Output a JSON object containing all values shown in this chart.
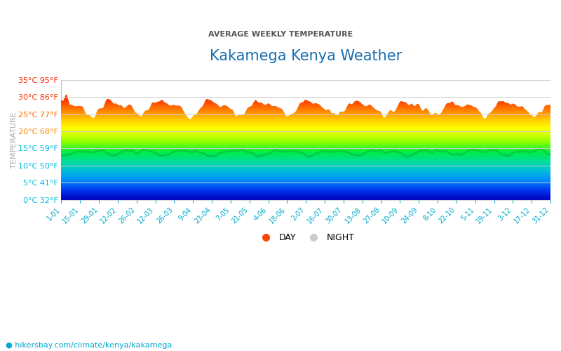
{
  "title": "Kakamega Kenya Weather",
  "subtitle": "AVERAGE WEEKLY TEMPERATURE",
  "ylabel": "TEMPERATURE",
  "url_text": "hikersbay.com/climate/kenya/kakamega",
  "yticks_c": [
    0,
    5,
    10,
    15,
    20,
    25,
    30,
    35
  ],
  "yticks_f": [
    32,
    41,
    50,
    59,
    68,
    77,
    86,
    95
  ],
  "ylim": [
    0,
    35
  ],
  "xlabels": [
    "1-01",
    "15-01",
    "29-01",
    "12-02",
    "26-02",
    "12-03",
    "26-03",
    "9-04",
    "23-04",
    "7-05",
    "21-05",
    "4-06",
    "18-06",
    "2-07",
    "16-07",
    "30-07",
    "13-08",
    "27-08",
    "10-09",
    "24-09",
    "8-10",
    "22-10",
    "5-11",
    "19-11",
    "3-12",
    "17-12",
    "31-12"
  ],
  "title_color": "#1a6faf",
  "subtitle_color": "#555555",
  "background_color": "#ffffff",
  "legend_day_color": "#ff4400",
  "legend_night_color": "#cccccc",
  "gradient_colors": [
    [
      0.0,
      "#0000bb"
    ],
    [
      0.08,
      "#0033ee"
    ],
    [
      0.16,
      "#0088ff"
    ],
    [
      0.24,
      "#00bbdd"
    ],
    [
      0.32,
      "#00dd99"
    ],
    [
      0.4,
      "#00ee44"
    ],
    [
      0.48,
      "#88ff00"
    ],
    [
      0.54,
      "#ccff00"
    ],
    [
      0.6,
      "#ffff00"
    ],
    [
      0.67,
      "#ffcc00"
    ],
    [
      0.74,
      "#ff8800"
    ],
    [
      0.82,
      "#ff4400"
    ],
    [
      0.9,
      "#ff2200"
    ],
    [
      1.0,
      "#ff0000"
    ]
  ],
  "tick_colors": {
    "0": "#00bbdd",
    "5": "#00bbdd",
    "10": "#00bbdd",
    "15": "#00bbdd",
    "20": "#ff8800",
    "25": "#ff6600",
    "30": "#ff3300",
    "35": "#ff2200"
  }
}
